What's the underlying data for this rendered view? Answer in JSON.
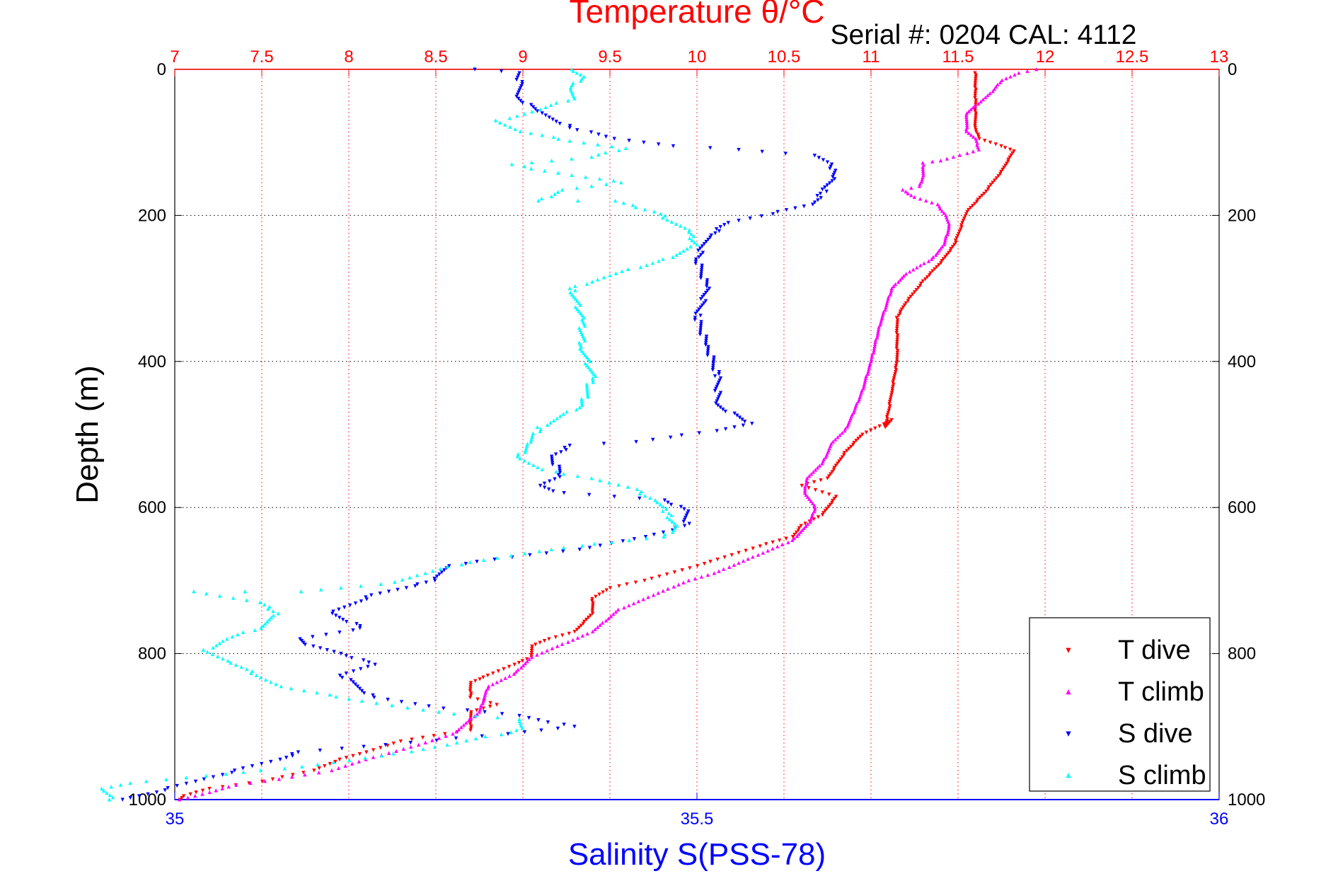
{
  "chart_data": {
    "type": "scatter",
    "title": "Temperature θ/°C",
    "subtitle": "Serial #: 0204  CAL: 4112",
    "ylabel": "Depth (m)",
    "xlabel": "Salinity S(PSS-78)",
    "depth_axis": {
      "ylim": [
        0,
        1000
      ],
      "inverted": true,
      "ticks": [
        0,
        200,
        400,
        600,
        800,
        1000
      ],
      "tick_labels": [
        "0",
        "200",
        "400",
        "600",
        "800",
        "1000"
      ]
    },
    "temperature_axis": {
      "position": "top",
      "xlim": [
        7,
        13
      ],
      "ticks": [
        7,
        7.5,
        8,
        8.5,
        9,
        9.5,
        10,
        10.5,
        11,
        11.5,
        12,
        12.5,
        13
      ],
      "tick_labels": [
        "7",
        "7.5",
        "8",
        "8.5",
        "9",
        "9.5",
        "10",
        "10.5",
        "11",
        "11.5",
        "12",
        "12.5",
        "13"
      ],
      "color": "#ff0000"
    },
    "salinity_axis": {
      "position": "bottom",
      "xlim": [
        35,
        36
      ],
      "ticks": [
        35,
        35.5,
        36
      ],
      "tick_labels": [
        "35",
        "35.5",
        "36"
      ],
      "color": "#0000ff"
    },
    "grid": true,
    "legend_position": "bottom-right",
    "series": [
      {
        "name": "T dive",
        "axis": "temperature",
        "color": "#ff0000",
        "marker": "triangle-down",
        "points": [
          [
            11.6,
            5
          ],
          [
            11.6,
            30
          ],
          [
            11.6,
            60
          ],
          [
            11.6,
            80
          ],
          [
            11.62,
            95
          ],
          [
            11.75,
            105
          ],
          [
            11.82,
            112
          ],
          [
            11.75,
            140
          ],
          [
            11.65,
            170
          ],
          [
            11.55,
            195
          ],
          [
            11.48,
            240
          ],
          [
            11.4,
            265
          ],
          [
            11.3,
            290
          ],
          [
            11.2,
            320
          ],
          [
            11.15,
            340
          ],
          [
            11.15,
            400
          ],
          [
            11.12,
            440
          ],
          [
            11.1,
            470
          ],
          [
            11.08,
            490
          ],
          [
            11.12,
            480
          ],
          [
            10.95,
            500
          ],
          [
            10.85,
            525
          ],
          [
            10.75,
            560
          ],
          [
            10.6,
            570
          ],
          [
            10.8,
            585
          ],
          [
            10.72,
            610
          ],
          [
            10.6,
            625
          ],
          [
            10.55,
            640
          ],
          [
            10.4,
            650
          ],
          [
            10.2,
            665
          ],
          [
            10.0,
            680
          ],
          [
            9.7,
            700
          ],
          [
            9.5,
            710
          ],
          [
            9.4,
            725
          ],
          [
            9.4,
            745
          ],
          [
            9.3,
            770
          ],
          [
            9.15,
            780
          ],
          [
            9.05,
            790
          ],
          [
            9.05,
            805
          ],
          [
            8.95,
            815
          ],
          [
            8.8,
            830
          ],
          [
            8.7,
            840
          ],
          [
            8.7,
            860
          ],
          [
            8.85,
            870
          ],
          [
            8.7,
            880
          ],
          [
            8.7,
            905
          ],
          [
            8.55,
            910
          ],
          [
            8.3,
            920
          ],
          [
            8.1,
            935
          ],
          [
            7.95,
            945
          ],
          [
            7.8,
            960
          ],
          [
            7.5,
            975
          ],
          [
            7.2,
            985
          ],
          [
            7.05,
            995
          ],
          [
            7.03,
            1000
          ]
        ]
      },
      {
        "name": "T climb",
        "axis": "temperature",
        "color": "#ff00ff",
        "marker": "triangle-up",
        "points": [
          [
            7.03,
            1000
          ],
          [
            7.2,
            990
          ],
          [
            7.35,
            980
          ],
          [
            7.6,
            972
          ],
          [
            7.9,
            960
          ],
          [
            8.1,
            945
          ],
          [
            8.4,
            925
          ],
          [
            8.6,
            910
          ],
          [
            8.75,
            880
          ],
          [
            8.8,
            845
          ],
          [
            8.95,
            828
          ],
          [
            9.05,
            805
          ],
          [
            9.2,
            790
          ],
          [
            9.4,
            770
          ],
          [
            9.55,
            740
          ],
          [
            9.75,
            720
          ],
          [
            9.95,
            700
          ],
          [
            10.1,
            690
          ],
          [
            10.35,
            665
          ],
          [
            10.55,
            645
          ],
          [
            10.65,
            620
          ],
          [
            10.68,
            600
          ],
          [
            10.62,
            580
          ],
          [
            10.63,
            560
          ],
          [
            10.72,
            540
          ],
          [
            10.78,
            510
          ],
          [
            10.85,
            495
          ],
          [
            10.9,
            470
          ],
          [
            10.95,
            440
          ],
          [
            11.0,
            400
          ],
          [
            11.05,
            350
          ],
          [
            11.12,
            300
          ],
          [
            11.2,
            280
          ],
          [
            11.35,
            260
          ],
          [
            11.42,
            240
          ],
          [
            11.45,
            215
          ],
          [
            11.43,
            200
          ],
          [
            11.38,
            185
          ],
          [
            11.25,
            175
          ],
          [
            11.18,
            165
          ],
          [
            11.28,
            160
          ],
          [
            11.3,
            145
          ],
          [
            11.3,
            128
          ],
          [
            11.4,
            125
          ],
          [
            11.55,
            115
          ],
          [
            11.62,
            110
          ],
          [
            11.6,
            95
          ],
          [
            11.55,
            85
          ],
          [
            11.55,
            60
          ],
          [
            11.6,
            50
          ],
          [
            11.7,
            30
          ],
          [
            11.75,
            15
          ],
          [
            11.85,
            5
          ],
          [
            11.95,
            0
          ]
        ]
      },
      {
        "name": "S dive",
        "axis": "salinity",
        "color": "#0000ff",
        "marker": "triangle-down",
        "points": [
          [
            35.29,
            0
          ],
          [
            35.33,
            5
          ],
          [
            35.33,
            20
          ],
          [
            35.33,
            40
          ],
          [
            35.35,
            60
          ],
          [
            35.38,
            80
          ],
          [
            35.42,
            95
          ],
          [
            35.48,
            105
          ],
          [
            35.54,
            110
          ],
          [
            35.61,
            118
          ],
          [
            35.63,
            130
          ],
          [
            35.63,
            150
          ],
          [
            35.62,
            170
          ],
          [
            35.61,
            185
          ],
          [
            35.58,
            195
          ],
          [
            35.53,
            210
          ],
          [
            35.51,
            230
          ],
          [
            35.5,
            260
          ],
          [
            35.51,
            300
          ],
          [
            35.5,
            340
          ],
          [
            35.51,
            380
          ],
          [
            35.52,
            420
          ],
          [
            35.52,
            460
          ],
          [
            35.55,
            485
          ],
          [
            35.52,
            495
          ],
          [
            35.44,
            510
          ],
          [
            35.38,
            515
          ],
          [
            35.36,
            530
          ],
          [
            35.37,
            555
          ],
          [
            35.35,
            570
          ],
          [
            35.37,
            580
          ],
          [
            35.47,
            590
          ],
          [
            35.49,
            605
          ],
          [
            35.49,
            625
          ],
          [
            35.45,
            640
          ],
          [
            35.4,
            655
          ],
          [
            35.34,
            665
          ],
          [
            35.26,
            680
          ],
          [
            35.25,
            700
          ],
          [
            35.22,
            710
          ],
          [
            35.19,
            720
          ],
          [
            35.15,
            745
          ],
          [
            35.18,
            765
          ],
          [
            35.12,
            780
          ],
          [
            35.13,
            790
          ],
          [
            35.16,
            800
          ],
          [
            35.19,
            815
          ],
          [
            35.16,
            830
          ],
          [
            35.19,
            860
          ],
          [
            35.26,
            875
          ],
          [
            35.33,
            885
          ],
          [
            35.38,
            900
          ],
          [
            35.32,
            910
          ],
          [
            35.2,
            925
          ],
          [
            35.12,
            935
          ],
          [
            35.1,
            945
          ],
          [
            35.06,
            960
          ],
          [
            35.02,
            975
          ],
          [
            34.98,
            990
          ],
          [
            34.95,
            1000
          ]
        ]
      },
      {
        "name": "S climb",
        "axis": "salinity",
        "color": "#00ffff",
        "marker": "triangle-up",
        "points": [
          [
            34.94,
            1000
          ],
          [
            34.93,
            985
          ],
          [
            34.97,
            975
          ],
          [
            35.05,
            965
          ],
          [
            35.12,
            955
          ],
          [
            35.2,
            940
          ],
          [
            35.26,
            925
          ],
          [
            35.33,
            905
          ],
          [
            35.33,
            890
          ],
          [
            35.25,
            880
          ],
          [
            35.18,
            865
          ],
          [
            35.1,
            845
          ],
          [
            35.08,
            830
          ],
          [
            35.05,
            810
          ],
          [
            35.03,
            795
          ],
          [
            35.05,
            780
          ],
          [
            35.08,
            765
          ],
          [
            35.1,
            745
          ],
          [
            35.08,
            730
          ],
          [
            35.02,
            715
          ],
          [
            35.12,
            715
          ],
          [
            35.2,
            705
          ],
          [
            35.24,
            690
          ],
          [
            35.28,
            675
          ],
          [
            35.35,
            660
          ],
          [
            35.4,
            650
          ],
          [
            35.47,
            640
          ],
          [
            35.48,
            625
          ],
          [
            35.47,
            605
          ],
          [
            35.46,
            590
          ],
          [
            35.44,
            575
          ],
          [
            35.4,
            560
          ],
          [
            35.35,
            548
          ],
          [
            35.33,
            530
          ],
          [
            35.34,
            510
          ],
          [
            35.35,
            490
          ],
          [
            35.39,
            460
          ],
          [
            35.4,
            420
          ],
          [
            35.39,
            380
          ],
          [
            35.39,
            340
          ],
          [
            35.38,
            300
          ],
          [
            35.41,
            285
          ],
          [
            35.47,
            260
          ],
          [
            35.5,
            240
          ],
          [
            35.49,
            220
          ],
          [
            35.46,
            195
          ],
          [
            35.42,
            180
          ],
          [
            35.35,
            180
          ],
          [
            35.37,
            165
          ],
          [
            35.43,
            155
          ],
          [
            35.38,
            145
          ],
          [
            35.32,
            130
          ],
          [
            35.4,
            120
          ],
          [
            35.43,
            108
          ],
          [
            35.38,
            98
          ],
          [
            35.33,
            85
          ],
          [
            35.31,
            70
          ],
          [
            35.35,
            55
          ],
          [
            35.38,
            40
          ],
          [
            35.38,
            25
          ],
          [
            35.39,
            10
          ],
          [
            35.38,
            0
          ]
        ]
      }
    ]
  }
}
